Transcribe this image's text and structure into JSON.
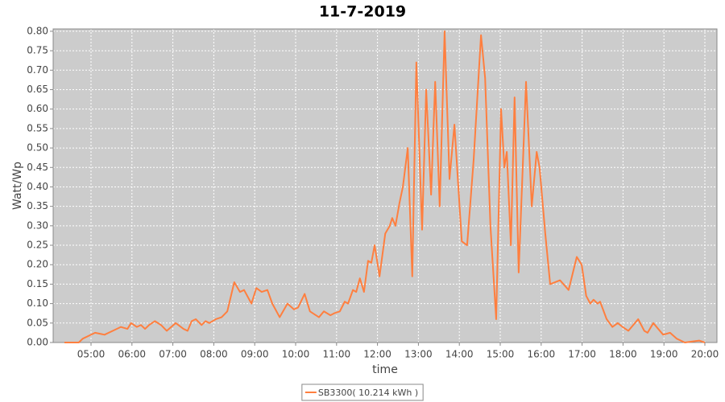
{
  "chart_data": {
    "type": "line",
    "title": "11-7-2019",
    "x_label": "time",
    "y_label": "Watt/Wp",
    "xlim": [
      4.075,
      20.295
    ],
    "ylim": [
      0,
      0.806
    ],
    "xticks": [
      {
        "value": 5,
        "label": "05:00"
      },
      {
        "value": 6,
        "label": "06:00"
      },
      {
        "value": 7,
        "label": "07:00"
      },
      {
        "value": 8,
        "label": "08:00"
      },
      {
        "value": 9,
        "label": "09:00"
      },
      {
        "value": 10,
        "label": "10:00"
      },
      {
        "value": 11,
        "label": "11:00"
      },
      {
        "value": 12,
        "label": "12:00"
      },
      {
        "value": 13,
        "label": "13:00"
      },
      {
        "value": 14,
        "label": "14:00"
      },
      {
        "value": 15,
        "label": "15:00"
      },
      {
        "value": 16,
        "label": "16:00"
      },
      {
        "value": 17,
        "label": "17:00"
      },
      {
        "value": 18,
        "label": "18:00"
      },
      {
        "value": 19,
        "label": "19:00"
      },
      {
        "value": 20,
        "label": "20:00"
      }
    ],
    "yticks": [
      {
        "value": 0,
        "label": "0.00"
      },
      {
        "value": 0.05,
        "label": "0.05"
      },
      {
        "value": 0.1,
        "label": "0.10"
      },
      {
        "value": 0.15,
        "label": "0.15"
      },
      {
        "value": 0.2,
        "label": "0.20"
      },
      {
        "value": 0.25,
        "label": "0.25"
      },
      {
        "value": 0.3,
        "label": "0.30"
      },
      {
        "value": 0.35,
        "label": "0.35"
      },
      {
        "value": 0.4,
        "label": "0.40"
      },
      {
        "value": 0.45,
        "label": "0.45"
      },
      {
        "value": 0.5,
        "label": "0.50"
      },
      {
        "value": 0.55,
        "label": "0.55"
      },
      {
        "value": 0.6,
        "label": "0.60"
      },
      {
        "value": 0.65,
        "label": "0.65"
      },
      {
        "value": 0.7,
        "label": "0.70"
      },
      {
        "value": 0.75,
        "label": "0.75"
      },
      {
        "value": 0.8,
        "label": "0.80"
      }
    ],
    "grid": true,
    "plot_background": "#cccccc",
    "legend_position": "bottom",
    "x": [
      4.35,
      4.7,
      4.8,
      5.1,
      5.33,
      5.53,
      5.73,
      5.89,
      5.98,
      6.12,
      6.22,
      6.32,
      6.42,
      6.56,
      6.71,
      6.85,
      7.07,
      7.26,
      7.36,
      7.46,
      7.56,
      7.7,
      7.8,
      7.89,
      8.05,
      8.19,
      8.33,
      8.5,
      8.64,
      8.74,
      8.92,
      9.04,
      9.17,
      9.31,
      9.43,
      9.61,
      9.8,
      9.96,
      10.06,
      10.22,
      10.35,
      10.57,
      10.69,
      10.85,
      10.94,
      11.08,
      11.2,
      11.28,
      11.4,
      11.48,
      11.57,
      11.67,
      11.77,
      11.85,
      11.93,
      12.05,
      12.19,
      12.3,
      12.36,
      12.44,
      12.54,
      12.62,
      12.74,
      12.85,
      12.95,
      13.09,
      13.19,
      13.31,
      13.41,
      13.52,
      13.64,
      13.76,
      13.88,
      14.06,
      14.19,
      14.35,
      14.53,
      14.63,
      14.76,
      14.9,
      15.02,
      15.1,
      15.16,
      15.26,
      15.35,
      15.45,
      15.63,
      15.77,
      15.89,
      15.96,
      16.1,
      16.22,
      16.46,
      16.67,
      16.87,
      16.99,
      17.1,
      17.2,
      17.28,
      17.38,
      17.44,
      17.6,
      17.74,
      17.87,
      17.99,
      18.13,
      18.37,
      18.52,
      18.6,
      18.74,
      18.98,
      19.15,
      19.31,
      19.51,
      19.86,
      20.0
    ],
    "series": [
      {
        "name": "SB3300( 10.214 kWh )",
        "color": "#ff7f3f",
        "values": [
          0,
          0,
          0.01,
          0.025,
          0.02,
          0.03,
          0.04,
          0.035,
          0.05,
          0.04,
          0.045,
          0.035,
          0.045,
          0.055,
          0.045,
          0.03,
          0.05,
          0.035,
          0.03,
          0.055,
          0.06,
          0.045,
          0.055,
          0.05,
          0.06,
          0.065,
          0.08,
          0.155,
          0.13,
          0.135,
          0.1,
          0.14,
          0.13,
          0.135,
          0.1,
          0.065,
          0.1,
          0.085,
          0.09,
          0.125,
          0.08,
          0.065,
          0.08,
          0.07,
          0.075,
          0.08,
          0.105,
          0.1,
          0.135,
          0.13,
          0.165,
          0.13,
          0.21,
          0.205,
          0.25,
          0.17,
          0.28,
          0.3,
          0.32,
          0.3,
          0.36,
          0.4,
          0.5,
          0.17,
          0.72,
          0.29,
          0.65,
          0.38,
          0.67,
          0.35,
          0.8,
          0.42,
          0.56,
          0.26,
          0.25,
          0.47,
          0.79,
          0.68,
          0.3,
          0.06,
          0.6,
          0.45,
          0.49,
          0.25,
          0.63,
          0.18,
          0.67,
          0.35,
          0.49,
          0.45,
          0.28,
          0.15,
          0.16,
          0.135,
          0.22,
          0.2,
          0.12,
          0.1,
          0.11,
          0.1,
          0.105,
          0.06,
          0.04,
          0.05,
          0.04,
          0.03,
          0.06,
          0.03,
          0.025,
          0.05,
          0.02,
          0.025,
          0.01,
          0,
          0.005,
          0
        ]
      }
    ]
  }
}
